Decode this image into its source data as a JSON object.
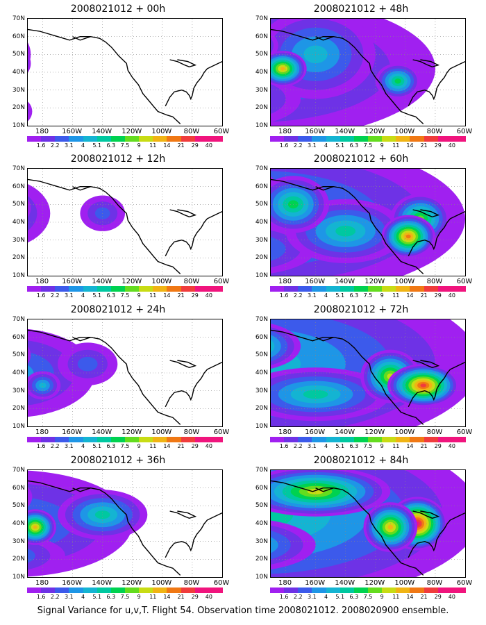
{
  "caption": "Signal Variance for u,v,T. Flight 54. Observation time 2008021012. 2008020900 ensemble.",
  "axes": {
    "y_ticks": [
      "70N",
      "60N",
      "50N",
      "40N",
      "30N",
      "20N",
      "10N"
    ],
    "x_ticks": [
      "180",
      "160W",
      "140W",
      "120W",
      "100W",
      "80W",
      "60W"
    ],
    "lon_range": [
      170,
      300
    ],
    "lat_range": [
      10,
      70
    ]
  },
  "colorbar": {
    "labels": [
      "1.6",
      "2.2",
      "3.1",
      "4",
      "5.1",
      "6.3",
      "7.5",
      "9",
      "11",
      "14",
      "21",
      "29",
      "40"
    ],
    "colors": [
      "#a020f0",
      "#6e32e6",
      "#3c5aeb",
      "#1e96e6",
      "#14b4d2",
      "#00c8a0",
      "#00d250",
      "#64dc1e",
      "#c8dc14",
      "#f0b414",
      "#f07814",
      "#f03c3c",
      "#f0147d"
    ]
  },
  "panels": [
    {
      "id": "p00",
      "title": "2008021012 + 00h",
      "lead_hours": 0,
      "col": 0,
      "row": 0,
      "blobs": [
        [
          158,
          45,
          14,
          10,
          9
        ],
        [
          138,
          47,
          9,
          7,
          6
        ],
        [
          126,
          47,
          7,
          6,
          6
        ],
        [
          150,
          50,
          22,
          16,
          3
        ],
        [
          147,
          20,
          12,
          10,
          2
        ],
        [
          165,
          18,
          8,
          7,
          2
        ]
      ]
    },
    {
      "id": "p12",
      "title": "2008021012 + 12h",
      "lead_hours": 12,
      "col": 0,
      "row": 1,
      "blobs": [
        [
          158,
          48,
          14,
          10,
          6
        ],
        [
          125,
          47,
          12,
          8,
          5
        ],
        [
          150,
          45,
          35,
          20,
          3
        ],
        [
          140,
          20,
          20,
          10,
          2
        ],
        [
          220,
          45,
          15,
          10,
          2
        ],
        [
          98,
          45,
          10,
          12,
          2
        ]
      ]
    },
    {
      "id": "p24",
      "title": "2008021012 + 24h",
      "lead_hours": 24,
      "col": 0,
      "row": 2,
      "blobs": [
        [
          150,
          50,
          22,
          12,
          7
        ],
        [
          108,
          47,
          14,
          10,
          5
        ],
        [
          180,
          33,
          12,
          8,
          4
        ],
        [
          160,
          40,
          55,
          25,
          3
        ],
        [
          210,
          45,
          20,
          12,
          2
        ],
        [
          125,
          25,
          25,
          12,
          3
        ]
      ]
    },
    {
      "id": "p36",
      "title": "2008021012 + 36h",
      "lead_hours": 36,
      "col": 0,
      "row": 3,
      "blobs": [
        [
          175,
          38,
          14,
          10,
          9
        ],
        [
          148,
          55,
          25,
          12,
          7
        ],
        [
          100,
          42,
          18,
          10,
          8
        ],
        [
          220,
          45,
          30,
          14,
          5
        ],
        [
          160,
          40,
          80,
          30,
          3
        ],
        [
          155,
          22,
          40,
          12,
          3
        ]
      ]
    },
    {
      "id": "p48",
      "title": "2008021012 + 48h",
      "lead_hours": 48,
      "col": 1,
      "row": 0,
      "blobs": [
        [
          178,
          42,
          16,
          10,
          9
        ],
        [
          150,
          55,
          25,
          12,
          7
        ],
        [
          95,
          38,
          20,
          10,
          9
        ],
        [
          255,
          35,
          15,
          10,
          6
        ],
        [
          200,
          50,
          40,
          25,
          4
        ],
        [
          160,
          42,
          120,
          40,
          3
        ],
        [
          150,
          25,
          40,
          15,
          3
        ]
      ]
    },
    {
      "id": "p60",
      "title": "2008021012 + 60h",
      "lead_hours": 60,
      "col": 1,
      "row": 1,
      "blobs": [
        [
          262,
          32,
          18,
          12,
          10
        ],
        [
          145,
          58,
          30,
          14,
          7
        ],
        [
          185,
          50,
          24,
          16,
          6
        ],
        [
          270,
          42,
          20,
          14,
          7
        ],
        [
          160,
          42,
          140,
          45,
          4
        ],
        [
          150,
          25,
          50,
          15,
          4
        ],
        [
          220,
          35,
          40,
          18,
          5
        ]
      ]
    },
    {
      "id": "p72",
      "title": "2008021012 + 72h",
      "lead_hours": 72,
      "col": 1,
      "row": 2,
      "blobs": [
        [
          272,
          33,
          24,
          12,
          11
        ],
        [
          250,
          38,
          20,
          15,
          8
        ],
        [
          155,
          55,
          35,
          14,
          7
        ],
        [
          100,
          40,
          20,
          12,
          6
        ],
        [
          160,
          45,
          150,
          50,
          4
        ],
        [
          200,
          28,
          50,
          15,
          5
        ]
      ]
    },
    {
      "id": "p84",
      "title": "2008021012 + 84h",
      "lead_hours": 84,
      "col": 1,
      "row": 3,
      "blobs": [
        [
          268,
          40,
          20,
          15,
          12
        ],
        [
          250,
          38,
          18,
          14,
          9
        ],
        [
          200,
          58,
          50,
          14,
          8
        ],
        [
          110,
          45,
          24,
          14,
          8
        ],
        [
          160,
          45,
          150,
          50,
          5
        ],
        [
          150,
          28,
          50,
          15,
          5
        ]
      ]
    }
  ]
}
